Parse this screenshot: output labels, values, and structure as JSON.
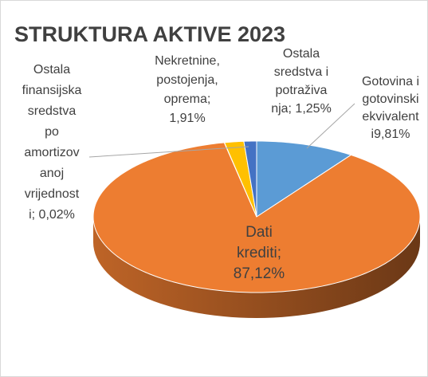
{
  "chart_data": {
    "type": "pie",
    "title": "STRUKTURA AKTIVE 2023",
    "values": [
      9.81,
      87.12,
      0.02,
      1.91,
      1.25
    ],
    "colors": [
      "#5b9bd5",
      "#ed7d31",
      "#a5a5a5",
      "#ffc000",
      "#4472c4"
    ],
    "data_labels": [
      [
        "Gotovina i",
        "gotovinski",
        "ekvivalent",
        "i9,81%"
      ],
      [
        "Dati",
        "krediti;",
        "87,12%"
      ],
      [
        "Ostala",
        "finansijska",
        "sredstva",
        "po",
        "amortizov",
        "anoj",
        "vrijednost",
        "i; 0,02%"
      ],
      [
        "Nekretnine,",
        "postojenja,",
        "oprema;",
        "1,91%"
      ],
      [
        "Ostala",
        "sredstva i",
        "potraživa",
        "nja; 1,25%"
      ]
    ]
  }
}
